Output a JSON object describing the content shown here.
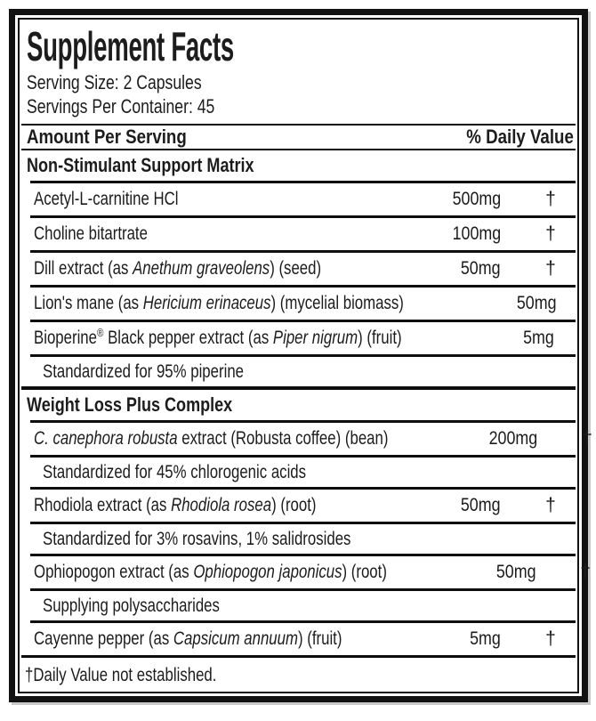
{
  "label": {
    "title": "Supplement Facts",
    "serving_size": "Serving Size: 2 Capsules",
    "servings_per_container": "Servings Per Container: 45",
    "columns": {
      "amount_header": "Amount Per Serving",
      "daily_value_header": "% Daily Value"
    },
    "footnote": "†Daily Value not established.",
    "dagger_symbol": "†",
    "colors": {
      "text": "#1c1c1c",
      "rule": "#0e0e0e",
      "background": "#ffffff"
    },
    "rows": [
      {
        "type": "section",
        "parts": [
          {
            "t": "Non-Stimulant Support Matrix"
          }
        ]
      },
      {
        "type": "ingredient",
        "parts": [
          {
            "t": "Acetyl-L-carnitine HCl"
          }
        ],
        "amount": "500mg",
        "dv": "†"
      },
      {
        "type": "ingredient",
        "parts": [
          {
            "t": "Choline bitartrate"
          }
        ],
        "amount": "100mg",
        "dv": "†"
      },
      {
        "type": "ingredient",
        "parts": [
          {
            "t": "Dill extract (as "
          },
          {
            "t": "Anethum graveolens",
            "i": true
          },
          {
            "t": ") (seed)"
          }
        ],
        "amount": "50mg",
        "dv": "†"
      },
      {
        "type": "ingredient",
        "parts": [
          {
            "t": "Lion's mane (as "
          },
          {
            "t": "Hericium erinaceus",
            "i": true
          },
          {
            "t": ") (mycelial biomass)"
          }
        ],
        "amount": "50mg",
        "dv": "†"
      },
      {
        "type": "ingredient",
        "parts": [
          {
            "t": "Bioperine"
          },
          {
            "t": "®",
            "sup": true
          },
          {
            "t": " Black pepper extract (as "
          },
          {
            "t": "Piper nigrum",
            "i": true
          },
          {
            "t": ") (fruit)"
          }
        ],
        "amount": "5mg",
        "dv": "†"
      },
      {
        "type": "subrow",
        "parts": [
          {
            "t": "Standardized for 95% piperine"
          }
        ]
      },
      {
        "type": "section",
        "parts": [
          {
            "t": "Weight Loss Plus Complex"
          }
        ]
      },
      {
        "type": "ingredient",
        "parts": [
          {
            "t": "C. canephora robusta",
            "i": true
          },
          {
            "t": " extract (Robusta coffee) (bean)"
          }
        ],
        "amount": "200mg",
        "dv": "†"
      },
      {
        "type": "subrow",
        "parts": [
          {
            "t": "Standardized for 45% chlorogenic acids"
          }
        ]
      },
      {
        "type": "ingredient",
        "parts": [
          {
            "t": "Rhodiola extract (as "
          },
          {
            "t": "Rhodiola rosea",
            "i": true
          },
          {
            "t": ") (root)"
          }
        ],
        "amount": "50mg",
        "dv": "†"
      },
      {
        "type": "subrow",
        "parts": [
          {
            "t": "Standardized for 3% rosavins, 1% salidrosides"
          }
        ]
      },
      {
        "type": "ingredient",
        "parts": [
          {
            "t": "Ophiopogon extract (as "
          },
          {
            "t": "Ophiopogon japonicus",
            "i": true
          },
          {
            "t": ") (root)"
          }
        ],
        "amount": "50mg",
        "dv": "†"
      },
      {
        "type": "subrow",
        "parts": [
          {
            "t": "Supplying polysaccharides"
          }
        ]
      },
      {
        "type": "ingredient",
        "parts": [
          {
            "t": "Cayenne pepper (as "
          },
          {
            "t": "Capsicum annuum",
            "i": true
          },
          {
            "t": ") (fruit)"
          }
        ],
        "amount": "5mg",
        "dv": "†"
      }
    ]
  }
}
